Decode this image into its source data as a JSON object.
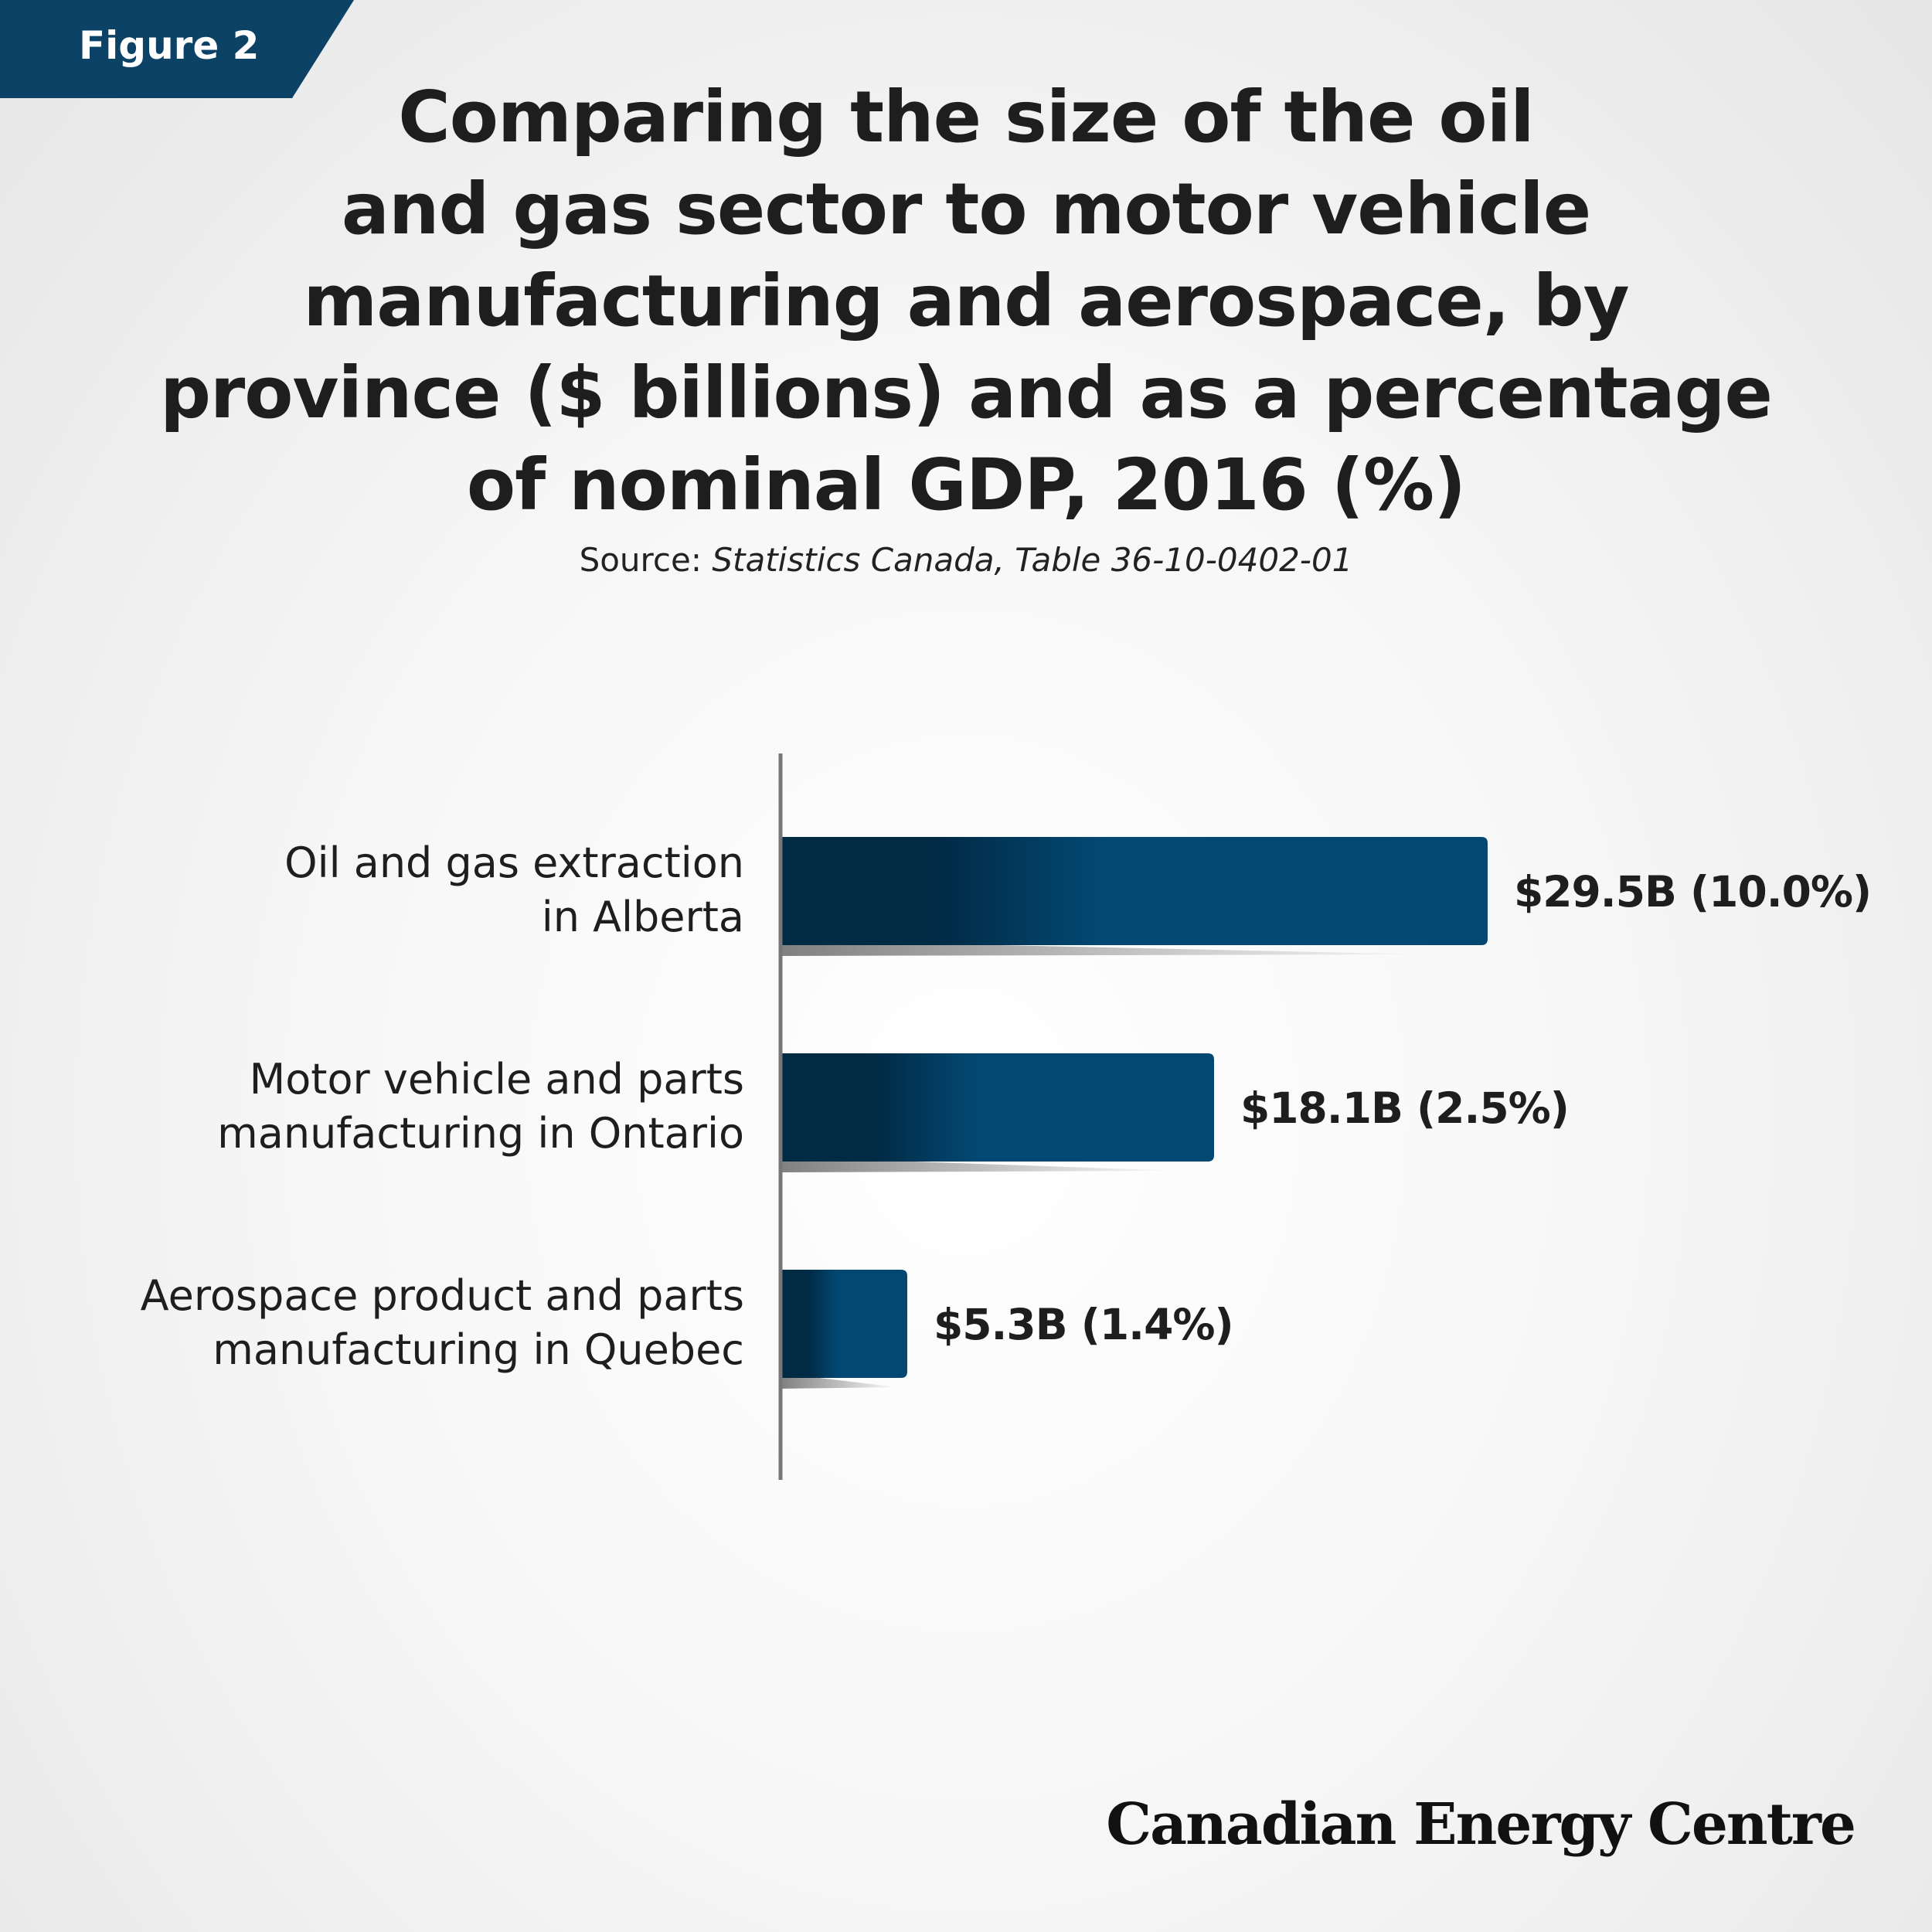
{
  "badge": {
    "label": "Figure 2",
    "color": "#0b4266"
  },
  "title_lines": [
    "Comparing the size of the oil",
    "and gas sector to motor vehicle",
    "manufacturing and aerospace, by",
    "province ($ billions) and as a percentage",
    "of nominal GDP, 2016 (%)"
  ],
  "source": {
    "prefix": "Source: ",
    "text": "Statistics Canada, Table 36-10-0402-01"
  },
  "chart_data": {
    "type": "bar",
    "orientation": "horizontal",
    "categories": [
      [
        "Oil and gas extraction",
        "in Alberta"
      ],
      [
        "Motor vehicle and parts",
        "manufacturing in Ontario"
      ],
      [
        "Aerospace product and parts",
        "manufacturing in Quebec"
      ]
    ],
    "values": [
      29.5,
      18.1,
      5.3
    ],
    "gdp_share_percent": [
      10.0,
      2.5,
      1.4
    ],
    "data_labels": [
      "$29.5B (10.0%)",
      "$18.1B (2.5%)",
      "$5.3B (1.4%)"
    ],
    "unit": "$ billions",
    "xlim": [
      0,
      29.5
    ],
    "grid": false,
    "bar_color": "#034872",
    "bar_color_dark": "#012a45"
  },
  "brand": {
    "name": "Canadian Energy Centre"
  }
}
